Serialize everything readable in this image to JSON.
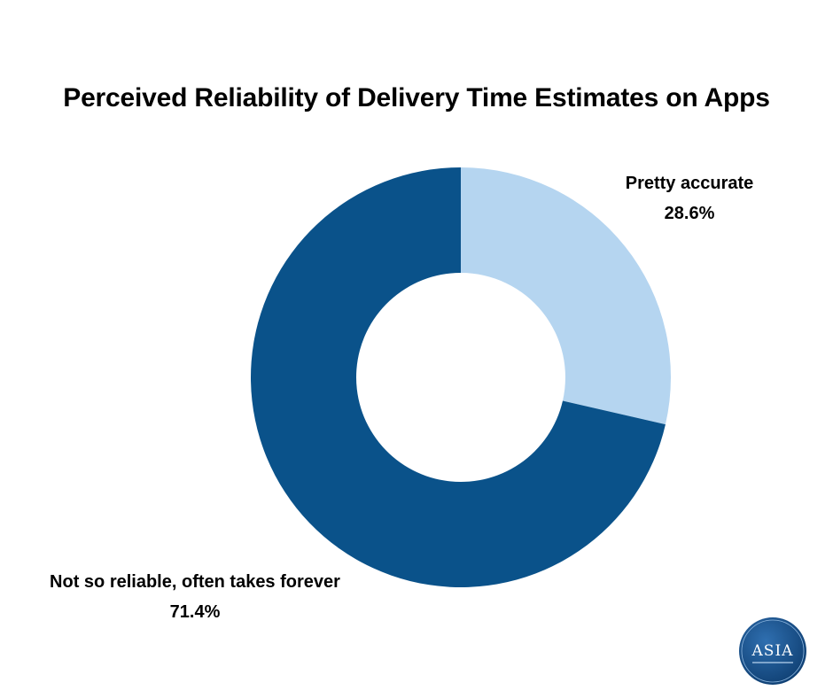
{
  "chart_data": {
    "type": "pie",
    "title": "Perceived Reliability of Delivery Time Estimates on Apps",
    "slices": [
      {
        "label": "Pretty accurate",
        "value": 28.6,
        "display": "28.6%",
        "color": "#b5d5f0"
      },
      {
        "label": "Not so reliable, often takes forever",
        "value": 71.4,
        "display": "71.4%",
        "color": "#0a528a"
      }
    ],
    "donut": true,
    "start_angle_deg": 0,
    "direction": "clockwise"
  },
  "logo": {
    "text": "ASIA",
    "color": "#0f4c85"
  }
}
